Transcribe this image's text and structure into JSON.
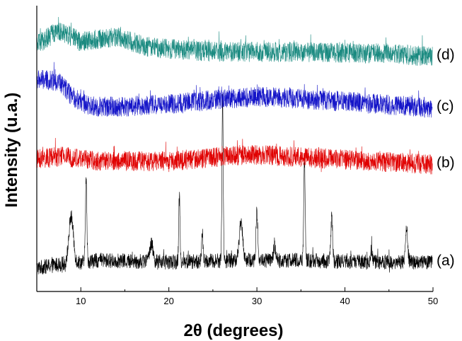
{
  "chart_data": {
    "type": "line",
    "xlabel": "2θ (degrees)",
    "ylabel": "Intensity (u.a.)",
    "xlim": [
      5,
      50
    ],
    "x_ticks": [
      10,
      20,
      30,
      40,
      50
    ],
    "y_ticks_shown": false,
    "grid": false,
    "series": [
      {
        "name": "(a)",
        "color": "#000000",
        "baseline": 0.0,
        "noise": 0.09,
        "profile": [
          [
            5,
            0.03
          ],
          [
            8,
            0.08
          ],
          [
            12,
            0.12
          ],
          [
            20,
            0.1
          ],
          [
            28,
            0.12
          ],
          [
            35,
            0.12
          ],
          [
            42,
            0.1
          ],
          [
            50,
            0.1
          ]
        ],
        "peaks": [
          {
            "x": 8.9,
            "height": 0.55,
            "width": 0.25
          },
          {
            "x": 10.6,
            "height": 0.98,
            "width": 0.08
          },
          {
            "x": 18.0,
            "height": 0.22,
            "width": 0.2
          },
          {
            "x": 21.2,
            "height": 0.8,
            "width": 0.07
          },
          {
            "x": 23.8,
            "height": 0.35,
            "width": 0.07
          },
          {
            "x": 26.1,
            "height": 1.95,
            "width": 0.07
          },
          {
            "x": 28.2,
            "height": 0.45,
            "width": 0.2
          },
          {
            "x": 30.0,
            "height": 0.58,
            "width": 0.1
          },
          {
            "x": 32.0,
            "height": 0.2,
            "width": 0.1
          },
          {
            "x": 35.4,
            "height": 1.2,
            "width": 0.08
          },
          {
            "x": 38.5,
            "height": 0.52,
            "width": 0.1
          },
          {
            "x": 43.0,
            "height": 0.15,
            "width": 0.1
          },
          {
            "x": 47.0,
            "height": 0.4,
            "width": 0.12
          }
        ]
      },
      {
        "name": "(b)",
        "color": "#e00000",
        "baseline": 1.3,
        "noise": 0.12,
        "profile": [
          [
            5,
            0.02
          ],
          [
            8,
            0.06
          ],
          [
            12,
            0.0
          ],
          [
            20,
            0.0
          ],
          [
            29,
            0.08
          ],
          [
            40,
            0.02
          ],
          [
            50,
            -0.04
          ]
        ],
        "peaks": []
      },
      {
        "name": "(c)",
        "color": "#1414c8",
        "baseline": 1.95,
        "noise": 0.12,
        "profile": [
          [
            5,
            0.32
          ],
          [
            7.5,
            0.3
          ],
          [
            9,
            0.12
          ],
          [
            11,
            0.0
          ],
          [
            15,
            0.0
          ],
          [
            21,
            0.04
          ],
          [
            30,
            0.12
          ],
          [
            40,
            0.06
          ],
          [
            50,
            -0.02
          ]
        ],
        "peaks": []
      },
      {
        "name": "(d)",
        "color": "#1a8a80",
        "baseline": 2.6,
        "noise": 0.12,
        "profile": [
          [
            5,
            0.08
          ],
          [
            7.5,
            0.26
          ],
          [
            10,
            0.12
          ],
          [
            14,
            0.18
          ],
          [
            18,
            0.05
          ],
          [
            25,
            0.0
          ],
          [
            35,
            0.0
          ],
          [
            45,
            -0.02
          ],
          [
            50,
            -0.06
          ]
        ],
        "peaks": []
      }
    ]
  }
}
